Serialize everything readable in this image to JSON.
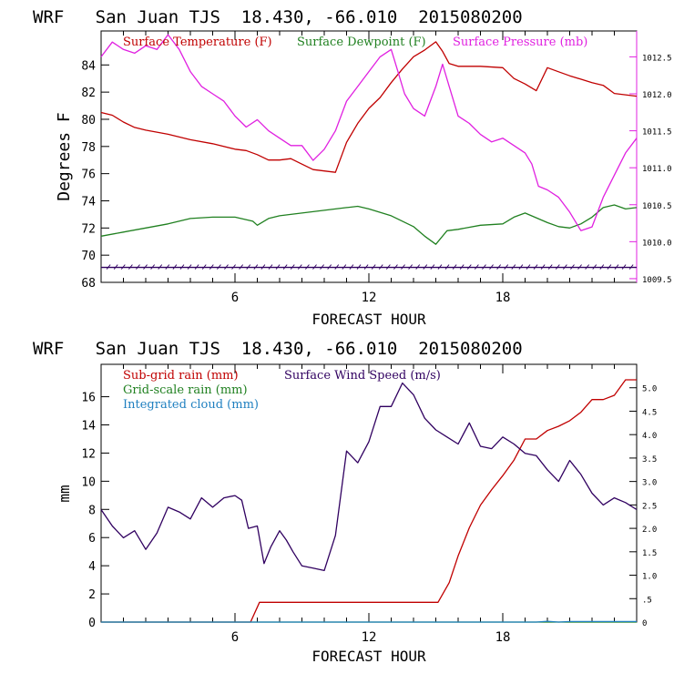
{
  "chart_data": [
    {
      "type": "line",
      "title": "WRF   San Juan TJS  18.430, -66.010  2015080200",
      "xlabel": "FORECAST HOUR",
      "ylabel": "Degrees F",
      "xlim": [
        0,
        24
      ],
      "ylim": [
        68,
        86.5
      ],
      "y2lim": [
        1009.45,
        1012.85
      ],
      "x_ticks": [
        "6",
        "12",
        "18"
      ],
      "y_ticks": [
        "68",
        "70",
        "72",
        "74",
        "76",
        "78",
        "80",
        "82",
        "84"
      ],
      "y2_ticks": [
        "1009.5",
        "1010.0",
        "1010.5",
        "1011.0",
        "1011.5",
        "1012.0",
        "1012.5"
      ],
      "colors": {
        "temperature": "#c00000",
        "dewpoint": "#208020",
        "pressure": "#e020e0",
        "wind": "#300060",
        "frame": "#000000",
        "right_axis": "#e020e0"
      },
      "series": [
        {
          "name": "Surface Temperature (F)",
          "axis": "left",
          "color": "#c00000",
          "x": [
            0,
            0.5,
            1,
            1.5,
            2,
            3,
            4,
            5,
            6,
            6.5,
            7,
            7.5,
            8,
            8.5,
            9,
            9.5,
            10,
            10.5,
            11,
            11.5,
            12,
            12.5,
            13,
            13.5,
            14,
            14.5,
            15,
            15.3,
            15.6,
            16,
            17,
            18,
            18.5,
            19,
            19.5,
            20,
            20.5,
            21,
            22,
            22.5,
            23,
            24
          ],
          "y": [
            80.5,
            80.3,
            79.8,
            79.4,
            79.2,
            78.9,
            78.5,
            78.2,
            77.8,
            77.7,
            77.4,
            77,
            77,
            77.1,
            76.7,
            76.3,
            76.2,
            76.1,
            78.3,
            79.7,
            80.8,
            81.6,
            82.7,
            83.7,
            84.6,
            85.1,
            85.7,
            85,
            84.1,
            83.9,
            83.9,
            83.8,
            83,
            82.6,
            82.1,
            83.8,
            83.5,
            83.2,
            82.7,
            82.5,
            81.9,
            81.7
          ]
        },
        {
          "name": "Surface Dewpoint (F)",
          "axis": "left",
          "color": "#208020",
          "x": [
            0,
            1,
            2,
            3,
            4,
            5,
            6,
            6.8,
            7,
            7.5,
            8,
            9,
            10,
            11,
            11.5,
            12,
            13,
            14,
            14.5,
            15,
            15.5,
            16,
            17,
            18,
            18.5,
            19,
            20,
            20.5,
            21,
            21.5,
            22,
            22.5,
            23,
            23.5,
            24
          ],
          "y": [
            71.4,
            71.7,
            72,
            72.3,
            72.7,
            72.8,
            72.8,
            72.5,
            72.2,
            72.7,
            72.9,
            73.1,
            73.3,
            73.5,
            73.6,
            73.4,
            72.9,
            72.1,
            71.4,
            70.8,
            71.8,
            71.9,
            72.2,
            72.3,
            72.8,
            73.1,
            72.4,
            72.1,
            72,
            72.3,
            72.8,
            73.5,
            73.7,
            73.4,
            73.5
          ]
        },
        {
          "name": "Surface Pressure (mb)",
          "axis": "right",
          "color": "#e020e0",
          "x": [
            0,
            0.5,
            1,
            1.5,
            2,
            2.5,
            3,
            3.5,
            4,
            4.5,
            5,
            5.5,
            6,
            6.5,
            7,
            7.5,
            8,
            8.5,
            9,
            9.5,
            10,
            10.5,
            11,
            11.5,
            12,
            12.5,
            13,
            13.3,
            13.6,
            14,
            14.5,
            15,
            15.3,
            15.6,
            16,
            16.5,
            17,
            17.5,
            18,
            18.5,
            19,
            19.3,
            19.6,
            20,
            20.5,
            21,
            21.5,
            22,
            22.5,
            23,
            23.5,
            24
          ],
          "y": [
            1012.5,
            1012.7,
            1012.6,
            1012.55,
            1012.65,
            1012.6,
            1012.8,
            1012.6,
            1012.3,
            1012.1,
            1012,
            1011.9,
            1011.7,
            1011.55,
            1011.65,
            1011.5,
            1011.4,
            1011.3,
            1011.3,
            1011.1,
            1011.25,
            1011.5,
            1011.9,
            1012.1,
            1012.3,
            1012.5,
            1012.6,
            1012.3,
            1012,
            1011.8,
            1011.7,
            1012.1,
            1012.4,
            1012.1,
            1011.7,
            1011.6,
            1011.45,
            1011.35,
            1011.4,
            1011.3,
            1011.2,
            1011.05,
            1010.75,
            1010.7,
            1010.6,
            1010.4,
            1010.15,
            1010.2,
            1010.6,
            1010.9,
            1011.2,
            1011.4
          ]
        },
        {
          "name": "",
          "axis": "left",
          "color": "#300060",
          "style": "wind-barbs",
          "x": [
            0,
            2,
            4,
            6,
            8,
            10,
            12,
            14,
            16,
            18,
            20,
            22,
            24
          ],
          "y": [
            69.1,
            69.1,
            69.1,
            69.1,
            69.1,
            69.1,
            69.1,
            69.1,
            69.1,
            69.1,
            69.1,
            69.1,
            69.1
          ]
        }
      ]
    },
    {
      "type": "line",
      "title": "WRF   San Juan TJS  18.430, -66.010  2015080200",
      "xlabel": "FORECAST HOUR",
      "ylabel": "mm",
      "xlim": [
        0,
        24
      ],
      "ylim": [
        0,
        18.3
      ],
      "y2lim": [
        0,
        5.5
      ],
      "x_ticks": [
        "6",
        "12",
        "18"
      ],
      "y_ticks": [
        "0",
        "2",
        "4",
        "6",
        "8",
        "10",
        "12",
        "14",
        "16"
      ],
      "y2_ticks": [
        "0",
        ".5",
        "1.0",
        "1.5",
        "2.0",
        "2.5",
        "3.0",
        "3.5",
        "4.0",
        "4.5",
        "5.0"
      ],
      "colors": {
        "subgrid": "#c00000",
        "gridscale": "#208020",
        "cloud": "#2080c0",
        "wind": "#300060",
        "frame": "#000000"
      },
      "series": [
        {
          "name": "Sub-grid rain (mm)",
          "axis": "left",
          "color": "#c00000",
          "x": [
            0,
            6.7,
            7.1,
            15.1,
            15.6,
            16,
            16.5,
            17,
            17.5,
            18,
            18.5,
            19,
            19.5,
            20,
            20.5,
            21,
            21.5,
            22,
            22.5,
            23,
            23.5,
            24
          ],
          "y": [
            0,
            0,
            1.4,
            1.4,
            2.8,
            4.7,
            6.7,
            8.3,
            9.4,
            10.4,
            11.5,
            13,
            13,
            13.6,
            13.9,
            14.3,
            14.9,
            15.8,
            15.8,
            16.1,
            17.2,
            17.2
          ]
        },
        {
          "name": "Grid-scale rain (mm)",
          "axis": "left",
          "color": "#208020",
          "x": [
            0,
            24
          ],
          "y": [
            0,
            0
          ]
        },
        {
          "name": "Integrated cloud (mm)",
          "axis": "left",
          "color": "#2080c0",
          "x": [
            0,
            19.5,
            20,
            20.5,
            21,
            24
          ],
          "y": [
            0,
            0,
            0.06,
            0,
            0.04,
            0.04
          ]
        },
        {
          "name": "Surface Wind Speed (m/s)",
          "axis": "right",
          "color": "#300060",
          "x": [
            0,
            0.5,
            1,
            1.5,
            2,
            2.5,
            3,
            3.5,
            4,
            4.5,
            5,
            5.5,
            6,
            6.3,
            6.6,
            7,
            7.3,
            7.6,
            8,
            8.3,
            8.6,
            9,
            9.5,
            10,
            10.5,
            11,
            11.5,
            12,
            12.5,
            13,
            13.5,
            14,
            14.5,
            15,
            15.5,
            16,
            16.5,
            17,
            17.5,
            18,
            18.5,
            19,
            19.5,
            20,
            20.5,
            21,
            21.5,
            22,
            22.5,
            23,
            23.5,
            24
          ],
          "y": [
            2.4,
            2.05,
            1.8,
            1.95,
            1.55,
            1.9,
            2.45,
            2.35,
            2.2,
            2.65,
            2.45,
            2.65,
            2.7,
            2.6,
            2.0,
            2.05,
            1.25,
            1.6,
            1.95,
            1.75,
            1.5,
            1.2,
            1.15,
            1.1,
            1.85,
            3.65,
            3.4,
            3.85,
            4.6,
            4.6,
            5.1,
            4.85,
            4.35,
            4.1,
            3.95,
            3.8,
            4.25,
            3.75,
            3.7,
            3.95,
            3.8,
            3.6,
            3.55,
            3.25,
            3.0,
            3.45,
            3.15,
            2.75,
            2.5,
            2.65,
            2.55,
            2.4
          ]
        }
      ]
    }
  ]
}
